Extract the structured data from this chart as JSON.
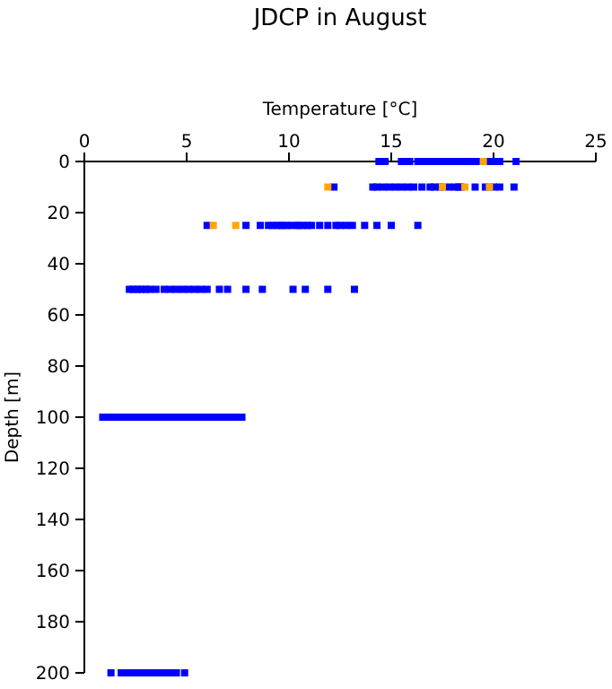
{
  "chart_data": {
    "type": "scatter",
    "title": "JDCP in August",
    "xlabel": "Temperature [°C]",
    "ylabel": "Depth [m]",
    "xlim": [
      0,
      25
    ],
    "xticks": [
      0,
      5,
      10,
      15,
      20,
      25
    ],
    "ylim": [
      200,
      0
    ],
    "yticks": [
      0,
      20,
      40,
      60,
      80,
      100,
      120,
      140,
      160,
      180,
      200
    ],
    "marker": "square",
    "series": [
      {
        "color": "#0000ff",
        "x": [
          14.4,
          14.7,
          15.5,
          15.7,
          15.9,
          16.3,
          16.6,
          16.9,
          17.2,
          17.5,
          17.7,
          17.9,
          18.1,
          18.4,
          18.7,
          18.9,
          19.1,
          19.3,
          19.7,
          19.9,
          20.1,
          20.3,
          21.1,
          12.2,
          14.1,
          14.3,
          14.6,
          14.9,
          15.2,
          15.5,
          15.8,
          16.1,
          16.5,
          16.9,
          17.1,
          17.4,
          17.8,
          18.1,
          18.3,
          18.4,
          19.1,
          19.6,
          20.0,
          20.3,
          21.0,
          6.0,
          7.9,
          8.6,
          9.0,
          9.2,
          9.4,
          9.6,
          9.7,
          9.9,
          10.1,
          10.4,
          10.5,
          10.7,
          10.9,
          11.1,
          11.5,
          11.9,
          12.3,
          12.5,
          12.8,
          13.1,
          13.7,
          14.3,
          15.0,
          16.3,
          2.2,
          2.4,
          2.6,
          2.8,
          3.0,
          3.2,
          3.5,
          3.9,
          4.2,
          4.5,
          4.8,
          5.1,
          5.4,
          5.7,
          6.0,
          6.6,
          7.0,
          7.9,
          8.7,
          10.2,
          10.8,
          11.9,
          13.2,
          0.9,
          1.2,
          1.5,
          1.8,
          2.1,
          2.4,
          2.7,
          3.0,
          3.3,
          3.6,
          3.9,
          4.2,
          4.5,
          4.8,
          5.1,
          5.4,
          5.7,
          6.0,
          6.3,
          6.6,
          6.9,
          7.2,
          7.5,
          7.7,
          1.3,
          1.8,
          2.1,
          2.4,
          2.7,
          3.0,
          3.3,
          3.6,
          3.9,
          4.2,
          4.5,
          4.9
        ],
        "values": [
          0,
          0,
          0,
          0,
          0,
          0,
          0,
          0,
          0,
          0,
          0,
          0,
          0,
          0,
          0,
          0,
          0,
          0,
          0,
          0,
          0,
          0,
          0,
          10,
          10,
          10,
          10,
          10,
          10,
          10,
          10,
          10,
          10,
          10,
          10,
          10,
          10,
          10,
          10,
          10,
          10,
          10,
          10,
          10,
          10,
          25,
          25,
          25,
          25,
          25,
          25,
          25,
          25,
          25,
          25,
          25,
          25,
          25,
          25,
          25,
          25,
          25,
          25,
          25,
          25,
          25,
          25,
          25,
          25,
          25,
          50,
          50,
          50,
          50,
          50,
          50,
          50,
          50,
          50,
          50,
          50,
          50,
          50,
          50,
          50,
          50,
          50,
          50,
          50,
          50,
          50,
          50,
          50,
          100,
          100,
          100,
          100,
          100,
          100,
          100,
          100,
          100,
          100,
          100,
          100,
          100,
          100,
          100,
          100,
          100,
          100,
          100,
          100,
          100,
          100,
          100,
          100,
          200,
          200,
          200,
          200,
          200,
          200,
          200,
          200,
          200,
          200,
          200,
          200
        ]
      },
      {
        "color": "#ffa500",
        "x": [
          19.5,
          11.9,
          17.5,
          18.6,
          19.8,
          6.3,
          7.4
        ],
        "values": [
          0,
          10,
          10,
          10,
          10,
          25,
          25
        ]
      }
    ]
  }
}
